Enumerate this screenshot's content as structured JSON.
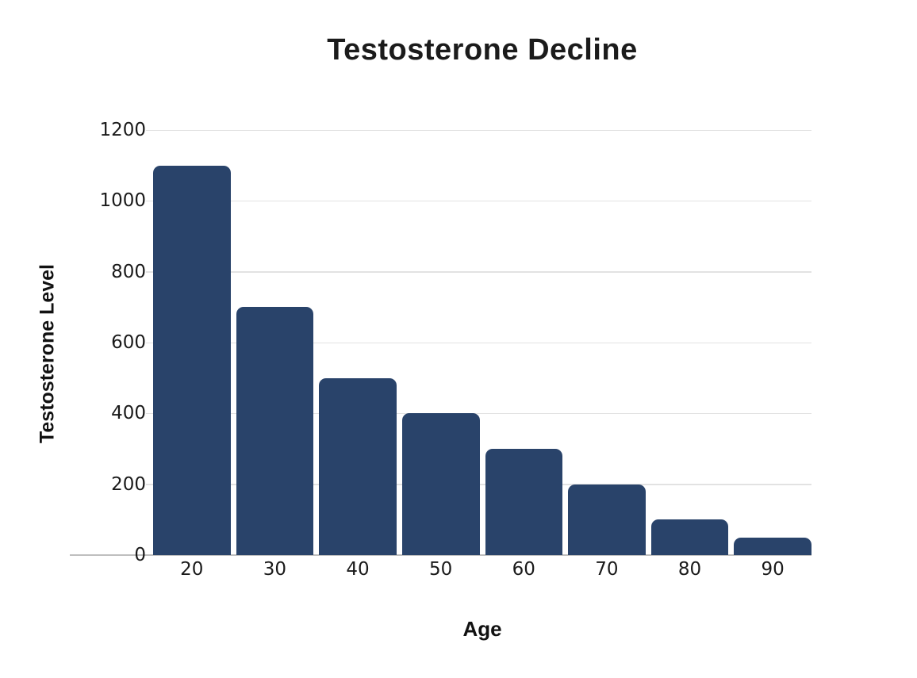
{
  "page": {
    "background": "#ffffff"
  },
  "chart_data": {
    "type": "bar",
    "title": "Testosterone Decline",
    "xlabel": "Age",
    "ylabel": "Testosterone Level",
    "categories": [
      "20",
      "30",
      "40",
      "50",
      "60",
      "70",
      "80",
      "90"
    ],
    "values": [
      1100,
      700,
      500,
      400,
      300,
      200,
      100,
      50
    ],
    "ylim": [
      0,
      1200
    ],
    "yticks": [
      0,
      200,
      400,
      600,
      800,
      1000,
      1200
    ],
    "grid": true,
    "legend": false,
    "colors": {
      "bar": "#29436a",
      "gridline": "#e2e2e2",
      "zero_line": "#bfbfbf",
      "text": "#1b1b1b"
    }
  }
}
